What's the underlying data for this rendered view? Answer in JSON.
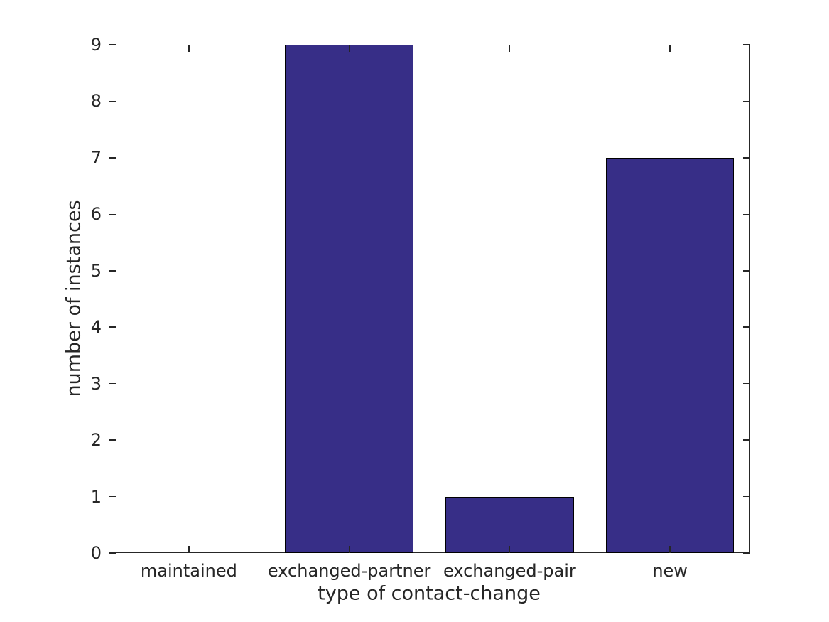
{
  "figure": {
    "background": "#ffffff"
  },
  "chart_data": {
    "type": "bar",
    "categories": [
      "maintained",
      "exchanged-partner",
      "exchanged-pair",
      "new"
    ],
    "values": [
      0,
      9,
      1,
      7
    ],
    "title": "",
    "xlabel": "type of contact-change",
    "ylabel": "number of instances",
    "ylim": [
      0,
      9
    ],
    "yticks": [
      0,
      1,
      2,
      3,
      4,
      5,
      6,
      7,
      8,
      9
    ],
    "bar_color": "#372E87",
    "bar_edge_color": "#000000",
    "axis_color": "#262626",
    "text_color": "#262626",
    "bar_width_fraction": 0.8,
    "grid": false,
    "legend": "none",
    "box": "on",
    "tick_direction": "in"
  }
}
